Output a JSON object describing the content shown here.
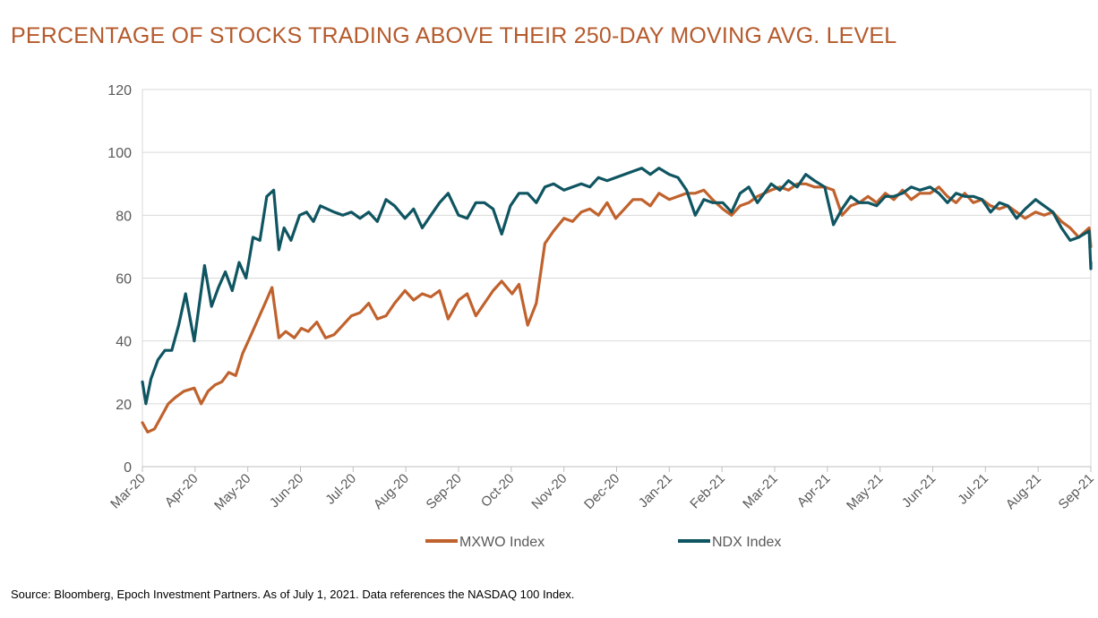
{
  "page": {
    "title": "PERCENTAGE OF STOCKS TRADING ABOVE THEIR 250-DAY MOVING AVG. LEVEL",
    "source": "Source: Bloomberg, Epoch Investment Partners. As of July 1, 2021. Data references the NASDAQ 100 Index."
  },
  "colors": {
    "title": "#b55a2c",
    "mxwo": "#c0622d",
    "ndx": "#0f5561",
    "grid": "#d9d9d9",
    "axis_text": "#595959"
  },
  "chart_data": {
    "type": "line",
    "title": "PERCENTAGE OF STOCKS TRADING ABOVE THEIR 250-DAY MOVING AVG. LEVEL",
    "xlabel": "",
    "ylabel": "",
    "ylim": [
      0,
      120
    ],
    "yticks": [
      "0",
      "20",
      "40",
      "60",
      "80",
      "100",
      "120"
    ],
    "x_tick_labels": [
      "Mar-20",
      "Apr-20",
      "May-20",
      "Jun-20",
      "Jul-20",
      "Aug-20",
      "Sep-20",
      "Oct-20",
      "Nov-20",
      "Dec-20",
      "Jan-21",
      "Feb-21",
      "Mar-21",
      "Apr-21",
      "May-21",
      "Jun-21",
      "Jul-21",
      "Aug-21",
      "Sep-21"
    ],
    "grid": true,
    "legend": "bottom-center",
    "series": [
      {
        "name": "MXWO Index",
        "x": [
          "2020-03-01",
          "2020-03-04",
          "2020-03-08",
          "2020-03-12",
          "2020-03-16",
          "2020-03-20",
          "2020-03-25",
          "2020-03-31",
          "2020-04-04",
          "2020-04-08",
          "2020-04-12",
          "2020-04-16",
          "2020-04-20",
          "2020-04-24",
          "2020-04-28",
          "2020-05-03",
          "2020-05-07",
          "2020-05-11",
          "2020-05-15",
          "2020-05-19",
          "2020-05-23",
          "2020-05-28",
          "2020-06-01",
          "2020-06-05",
          "2020-06-10",
          "2020-06-15",
          "2020-06-20",
          "2020-06-25",
          "2020-06-30",
          "2020-07-05",
          "2020-07-10",
          "2020-07-15",
          "2020-07-20",
          "2020-07-25",
          "2020-07-31",
          "2020-08-05",
          "2020-08-10",
          "2020-08-15",
          "2020-08-20",
          "2020-08-25",
          "2020-08-31",
          "2020-09-05",
          "2020-09-10",
          "2020-09-15",
          "2020-09-20",
          "2020-09-25",
          "2020-09-28",
          "2020-10-01",
          "2020-10-05",
          "2020-10-10",
          "2020-10-15",
          "2020-10-20",
          "2020-10-25",
          "2020-10-31",
          "2020-11-05",
          "2020-11-10",
          "2020-11-15",
          "2020-11-20",
          "2020-11-25",
          "2020-11-30",
          "2020-12-05",
          "2020-12-10",
          "2020-12-15",
          "2020-12-20",
          "2020-12-25",
          "2020-12-31",
          "2021-01-05",
          "2021-01-10",
          "2021-01-15",
          "2021-01-20",
          "2021-01-25",
          "2021-01-31",
          "2021-02-05",
          "2021-02-10",
          "2021-02-15",
          "2021-02-20",
          "2021-02-28",
          "2021-03-05",
          "2021-03-10",
          "2021-03-15",
          "2021-03-20",
          "2021-03-25",
          "2021-03-31",
          "2021-04-05",
          "2021-04-10",
          "2021-04-15",
          "2021-04-20",
          "2021-04-25",
          "2021-04-30",
          "2021-05-05",
          "2021-05-10",
          "2021-05-15",
          "2021-05-20",
          "2021-05-25",
          "2021-05-31",
          "2021-06-05",
          "2021-06-10",
          "2021-06-15",
          "2021-06-20",
          "2021-06-25",
          "2021-06-30",
          "2021-07-05",
          "2021-07-10",
          "2021-07-15",
          "2021-07-20",
          "2021-07-25",
          "2021-07-31",
          "2021-08-05",
          "2021-08-10",
          "2021-08-15",
          "2021-08-20",
          "2021-08-25",
          "2021-08-31",
          "2021-09-02"
        ],
        "values": [
          14,
          11,
          12,
          16,
          20,
          22,
          24,
          25,
          20,
          24,
          26,
          27,
          30,
          29,
          36,
          42,
          47,
          52,
          57,
          41,
          43,
          41,
          44,
          43,
          46,
          41,
          42,
          45,
          48,
          49,
          52,
          47,
          48,
          52,
          56,
          53,
          55,
          54,
          56,
          47,
          53,
          55,
          48,
          52,
          56,
          59,
          57,
          55,
          58,
          45,
          52,
          71,
          75,
          79,
          78,
          81,
          82,
          80,
          84,
          79,
          82,
          85,
          85,
          83,
          87,
          85,
          86,
          87,
          87,
          88,
          85,
          82,
          80,
          83,
          84,
          86,
          88,
          89,
          88,
          90,
          90,
          89,
          89,
          88,
          80,
          83,
          84,
          86,
          84,
          87,
          85,
          88,
          85,
          87,
          87,
          89,
          86,
          84,
          87,
          84,
          85,
          83,
          82,
          83,
          81,
          79,
          81,
          80,
          81,
          78,
          76,
          73,
          76,
          70
        ],
        "color": "#c0622d"
      },
      {
        "name": "NDX Index",
        "x": [
          "2020-03-01",
          "2020-03-03",
          "2020-03-06",
          "2020-03-10",
          "2020-03-14",
          "2020-03-18",
          "2020-03-22",
          "2020-03-26",
          "2020-03-31",
          "2020-04-03",
          "2020-04-06",
          "2020-04-10",
          "2020-04-14",
          "2020-04-18",
          "2020-04-22",
          "2020-04-26",
          "2020-04-30",
          "2020-05-04",
          "2020-05-08",
          "2020-05-12",
          "2020-05-16",
          "2020-05-19",
          "2020-05-22",
          "2020-05-26",
          "2020-05-31",
          "2020-06-04",
          "2020-06-08",
          "2020-06-12",
          "2020-06-16",
          "2020-06-20",
          "2020-06-25",
          "2020-06-30",
          "2020-07-05",
          "2020-07-10",
          "2020-07-15",
          "2020-07-20",
          "2020-07-25",
          "2020-07-31",
          "2020-08-05",
          "2020-08-10",
          "2020-08-15",
          "2020-08-20",
          "2020-08-25",
          "2020-08-31",
          "2020-09-05",
          "2020-09-10",
          "2020-09-15",
          "2020-09-20",
          "2020-09-25",
          "2020-09-30",
          "2020-10-05",
          "2020-10-10",
          "2020-10-15",
          "2020-10-20",
          "2020-10-25",
          "2020-10-31",
          "2020-11-05",
          "2020-11-10",
          "2020-11-15",
          "2020-11-20",
          "2020-11-25",
          "2020-11-30",
          "2020-12-05",
          "2020-12-10",
          "2020-12-15",
          "2020-12-20",
          "2020-12-25",
          "2020-12-31",
          "2021-01-05",
          "2021-01-10",
          "2021-01-15",
          "2021-01-20",
          "2021-01-25",
          "2021-01-31",
          "2021-02-05",
          "2021-02-10",
          "2021-02-15",
          "2021-02-20",
          "2021-02-28",
          "2021-03-05",
          "2021-03-10",
          "2021-03-15",
          "2021-03-20",
          "2021-03-25",
          "2021-03-31",
          "2021-04-05",
          "2021-04-10",
          "2021-04-15",
          "2021-04-20",
          "2021-04-25",
          "2021-04-30",
          "2021-05-05",
          "2021-05-10",
          "2021-05-15",
          "2021-05-20",
          "2021-05-25",
          "2021-05-31",
          "2021-06-05",
          "2021-06-10",
          "2021-06-15",
          "2021-06-20",
          "2021-06-25",
          "2021-06-30",
          "2021-07-05",
          "2021-07-10",
          "2021-07-15",
          "2021-07-20",
          "2021-07-25",
          "2021-07-31",
          "2021-08-05",
          "2021-08-10",
          "2021-08-15",
          "2021-08-20",
          "2021-08-25",
          "2021-08-31",
          "2021-09-01",
          "2021-09-02"
        ],
        "values": [
          27,
          20,
          28,
          34,
          37,
          37,
          45,
          55,
          40,
          52,
          64,
          51,
          57,
          62,
          56,
          65,
          60,
          73,
          72,
          86,
          88,
          69,
          76,
          72,
          80,
          81,
          78,
          83,
          82,
          81,
          80,
          81,
          79,
          81,
          78,
          85,
          83,
          79,
          82,
          76,
          80,
          84,
          87,
          80,
          79,
          84,
          84,
          82,
          74,
          83,
          87,
          87,
          84,
          89,
          90,
          88,
          89,
          90,
          89,
          92,
          91,
          92,
          93,
          94,
          95,
          93,
          95,
          93,
          92,
          88,
          80,
          85,
          84,
          84,
          81,
          87,
          89,
          84,
          90,
          88,
          91,
          89,
          93,
          91,
          89,
          77,
          82,
          86,
          84,
          84,
          83,
          86,
          86,
          87,
          89,
          88,
          89,
          87,
          84,
          87,
          86,
          86,
          85,
          81,
          84,
          83,
          79,
          82,
          85,
          83,
          81,
          76,
          72,
          73,
          75,
          63,
          65
        ]
      }
    ]
  }
}
